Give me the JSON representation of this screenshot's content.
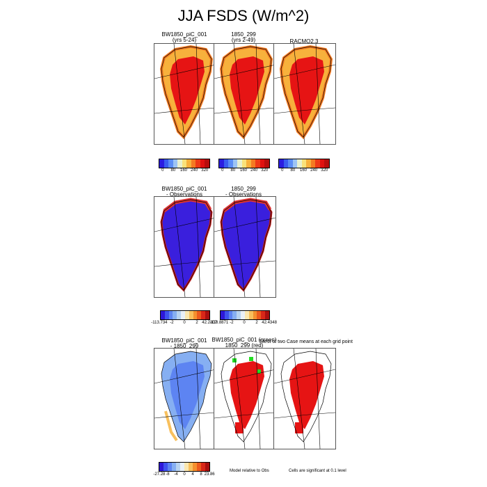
{
  "title": "JJA FSDS (W/m^2)",
  "panels": {
    "r1c1_title1": "BW1850_piC_001",
    "r1c1_title2": "(yrs 5-24)",
    "r1c2_title1": "1850_299",
    "r1c2_title2": "(yrs 2-49)",
    "r1c3_title1": "RACMO2.3",
    "r2c1_title1": "BW1850_piC_001",
    "r2c1_title2": "- Observations",
    "r2c2_title1": "1850_299",
    "r2c2_title2": "- Observations",
    "r3c1_title1": "BW1850_piC_001",
    "r3c1_title2": "- 1850_299",
    "r3c2_title1": "BW1850_piC_001 (green)",
    "r3c2_title2": "1850_299 (red)",
    "r3c3_title1": "T test of two Case means at each grid point"
  },
  "colorbars": {
    "abs_ticks": [
      "0",
      "80",
      "160",
      "240",
      "320"
    ],
    "bias1_ticks": [
      "-113.734",
      "-2",
      "0",
      "2",
      "42.2307"
    ],
    "bias2_ticks": [
      "-118.8871",
      "-2",
      "0",
      "2",
      "42.4348"
    ],
    "diff_ticks": [
      "-27.28",
      "-8",
      "-4",
      "0",
      "4",
      "8",
      "23.86"
    ]
  },
  "notes": {
    "model_relative": "Model relative to Obs",
    "significance": "Cells are significant at 0.1 level"
  },
  "colors": {
    "absolute_scale": [
      "#2b1de0",
      "#3a5cf0",
      "#5c8ef5",
      "#9cc4f5",
      "#e8f0d0",
      "#f9e27a",
      "#f7b13c",
      "#f47a22",
      "#ee3a17",
      "#e01010",
      "#b70d0d"
    ],
    "diverging_scale": [
      "#2e18d8",
      "#3f53ee",
      "#5d84f2",
      "#86aff2",
      "#b8d3f0",
      "#e9f0f7",
      "#fbe7b0",
      "#f8c05d",
      "#f4902e",
      "#ec5a1d",
      "#d82718",
      "#a90f0f"
    ],
    "greenland_fill": "#e61414",
    "bias_fill": "#3a1fdd",
    "sig_green": "#22dd22"
  },
  "chart_data": [
    {
      "type": "heatmap",
      "title": "BW1850_piC_001 (yrs 5-24)",
      "region": "Greenland",
      "variable": "JJA FSDS",
      "units": "W/m^2",
      "colorbar_ticks": [
        0,
        80,
        160,
        240,
        320
      ]
    },
    {
      "type": "heatmap",
      "title": "1850_299 (yrs 2-49)",
      "region": "Greenland",
      "variable": "JJA FSDS",
      "units": "W/m^2",
      "colorbar_ticks": [
        0,
        80,
        160,
        240,
        320
      ]
    },
    {
      "type": "heatmap",
      "title": "RACMO2.3",
      "region": "Greenland",
      "variable": "JJA FSDS",
      "units": "W/m^2",
      "colorbar_ticks": [
        0,
        80,
        160,
        240,
        320
      ]
    },
    {
      "type": "heatmap",
      "title": "BW1850_piC_001 - Observations",
      "region": "Greenland",
      "colorbar_range": [
        -113.734,
        42.2307
      ],
      "colorbar_ticks": [
        -2,
        0,
        2
      ]
    },
    {
      "type": "heatmap",
      "title": "1850_299 - Observations",
      "region": "Greenland",
      "colorbar_range": [
        -118.8871,
        42.4348
      ],
      "colorbar_ticks": [
        -2,
        0,
        2
      ]
    },
    {
      "type": "heatmap",
      "title": "BW1850_piC_001 - 1850_299",
      "region": "Greenland",
      "colorbar_range": [
        -27.28,
        23.86
      ],
      "colorbar_ticks": [
        -8,
        -4,
        0,
        4,
        8
      ]
    },
    {
      "type": "heatmap",
      "title": "BW1850_piC_001 (green) 1850_299 (red)",
      "region": "Greenland",
      "note": "Model relative to Obs"
    },
    {
      "type": "heatmap",
      "title": "T test of two Case means at each grid point",
      "region": "Greenland",
      "note": "Cells are significant at 0.1 level"
    }
  ]
}
